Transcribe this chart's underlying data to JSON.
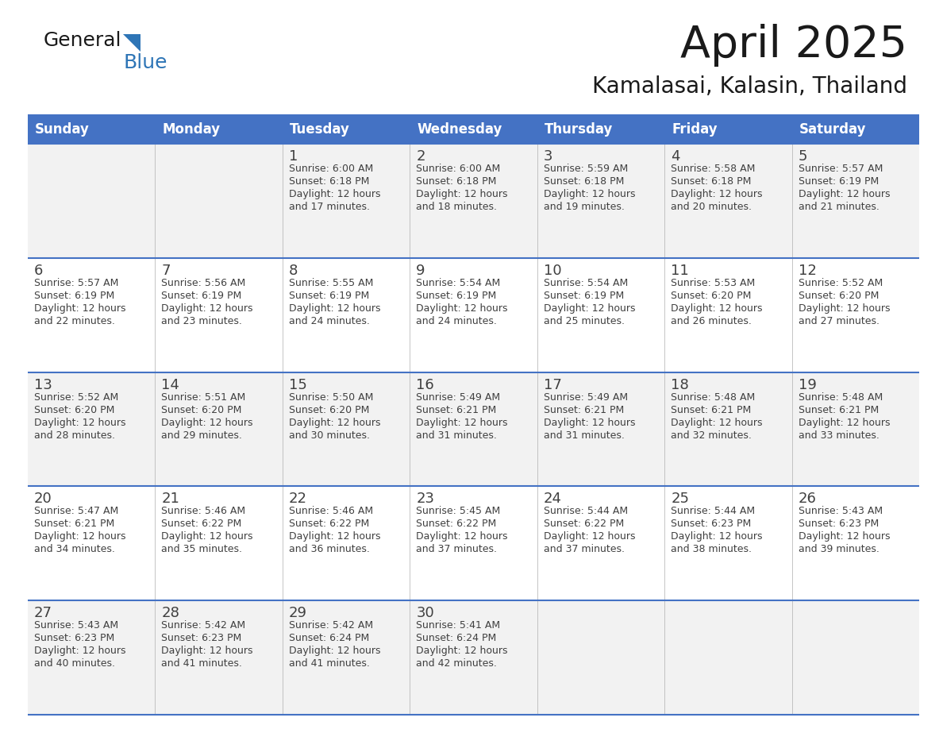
{
  "title": "April 2025",
  "subtitle": "Kamalasai, Kalasin, Thailand",
  "header_bg": "#4472C4",
  "header_text_color": "#FFFFFF",
  "cell_bg_odd": "#F2F2F2",
  "cell_bg_even": "#FFFFFF",
  "border_color": "#4472C4",
  "text_color": "#404040",
  "days_of_week": [
    "Sunday",
    "Monday",
    "Tuesday",
    "Wednesday",
    "Thursday",
    "Friday",
    "Saturday"
  ],
  "weeks": [
    [
      {
        "day": "",
        "info": ""
      },
      {
        "day": "",
        "info": ""
      },
      {
        "day": "1",
        "info": "Sunrise: 6:00 AM\nSunset: 6:18 PM\nDaylight: 12 hours\nand 17 minutes."
      },
      {
        "day": "2",
        "info": "Sunrise: 6:00 AM\nSunset: 6:18 PM\nDaylight: 12 hours\nand 18 minutes."
      },
      {
        "day": "3",
        "info": "Sunrise: 5:59 AM\nSunset: 6:18 PM\nDaylight: 12 hours\nand 19 minutes."
      },
      {
        "day": "4",
        "info": "Sunrise: 5:58 AM\nSunset: 6:18 PM\nDaylight: 12 hours\nand 20 minutes."
      },
      {
        "day": "5",
        "info": "Sunrise: 5:57 AM\nSunset: 6:19 PM\nDaylight: 12 hours\nand 21 minutes."
      }
    ],
    [
      {
        "day": "6",
        "info": "Sunrise: 5:57 AM\nSunset: 6:19 PM\nDaylight: 12 hours\nand 22 minutes."
      },
      {
        "day": "7",
        "info": "Sunrise: 5:56 AM\nSunset: 6:19 PM\nDaylight: 12 hours\nand 23 minutes."
      },
      {
        "day": "8",
        "info": "Sunrise: 5:55 AM\nSunset: 6:19 PM\nDaylight: 12 hours\nand 24 minutes."
      },
      {
        "day": "9",
        "info": "Sunrise: 5:54 AM\nSunset: 6:19 PM\nDaylight: 12 hours\nand 24 minutes."
      },
      {
        "day": "10",
        "info": "Sunrise: 5:54 AM\nSunset: 6:19 PM\nDaylight: 12 hours\nand 25 minutes."
      },
      {
        "day": "11",
        "info": "Sunrise: 5:53 AM\nSunset: 6:20 PM\nDaylight: 12 hours\nand 26 minutes."
      },
      {
        "day": "12",
        "info": "Sunrise: 5:52 AM\nSunset: 6:20 PM\nDaylight: 12 hours\nand 27 minutes."
      }
    ],
    [
      {
        "day": "13",
        "info": "Sunrise: 5:52 AM\nSunset: 6:20 PM\nDaylight: 12 hours\nand 28 minutes."
      },
      {
        "day": "14",
        "info": "Sunrise: 5:51 AM\nSunset: 6:20 PM\nDaylight: 12 hours\nand 29 minutes."
      },
      {
        "day": "15",
        "info": "Sunrise: 5:50 AM\nSunset: 6:20 PM\nDaylight: 12 hours\nand 30 minutes."
      },
      {
        "day": "16",
        "info": "Sunrise: 5:49 AM\nSunset: 6:21 PM\nDaylight: 12 hours\nand 31 minutes."
      },
      {
        "day": "17",
        "info": "Sunrise: 5:49 AM\nSunset: 6:21 PM\nDaylight: 12 hours\nand 31 minutes."
      },
      {
        "day": "18",
        "info": "Sunrise: 5:48 AM\nSunset: 6:21 PM\nDaylight: 12 hours\nand 32 minutes."
      },
      {
        "day": "19",
        "info": "Sunrise: 5:48 AM\nSunset: 6:21 PM\nDaylight: 12 hours\nand 33 minutes."
      }
    ],
    [
      {
        "day": "20",
        "info": "Sunrise: 5:47 AM\nSunset: 6:21 PM\nDaylight: 12 hours\nand 34 minutes."
      },
      {
        "day": "21",
        "info": "Sunrise: 5:46 AM\nSunset: 6:22 PM\nDaylight: 12 hours\nand 35 minutes."
      },
      {
        "day": "22",
        "info": "Sunrise: 5:46 AM\nSunset: 6:22 PM\nDaylight: 12 hours\nand 36 minutes."
      },
      {
        "day": "23",
        "info": "Sunrise: 5:45 AM\nSunset: 6:22 PM\nDaylight: 12 hours\nand 37 minutes."
      },
      {
        "day": "24",
        "info": "Sunrise: 5:44 AM\nSunset: 6:22 PM\nDaylight: 12 hours\nand 37 minutes."
      },
      {
        "day": "25",
        "info": "Sunrise: 5:44 AM\nSunset: 6:23 PM\nDaylight: 12 hours\nand 38 minutes."
      },
      {
        "day": "26",
        "info": "Sunrise: 5:43 AM\nSunset: 6:23 PM\nDaylight: 12 hours\nand 39 minutes."
      }
    ],
    [
      {
        "day": "27",
        "info": "Sunrise: 5:43 AM\nSunset: 6:23 PM\nDaylight: 12 hours\nand 40 minutes."
      },
      {
        "day": "28",
        "info": "Sunrise: 5:42 AM\nSunset: 6:23 PM\nDaylight: 12 hours\nand 41 minutes."
      },
      {
        "day": "29",
        "info": "Sunrise: 5:42 AM\nSunset: 6:24 PM\nDaylight: 12 hours\nand 41 minutes."
      },
      {
        "day": "30",
        "info": "Sunrise: 5:41 AM\nSunset: 6:24 PM\nDaylight: 12 hours\nand 42 minutes."
      },
      {
        "day": "",
        "info": ""
      },
      {
        "day": "",
        "info": ""
      },
      {
        "day": "",
        "info": ""
      }
    ]
  ],
  "logo_general_color": "#1a1a1a",
  "logo_blue_color": "#2E75B6",
  "logo_triangle_color": "#2E75B6",
  "fig_width": 11.88,
  "fig_height": 9.18,
  "dpi": 100
}
